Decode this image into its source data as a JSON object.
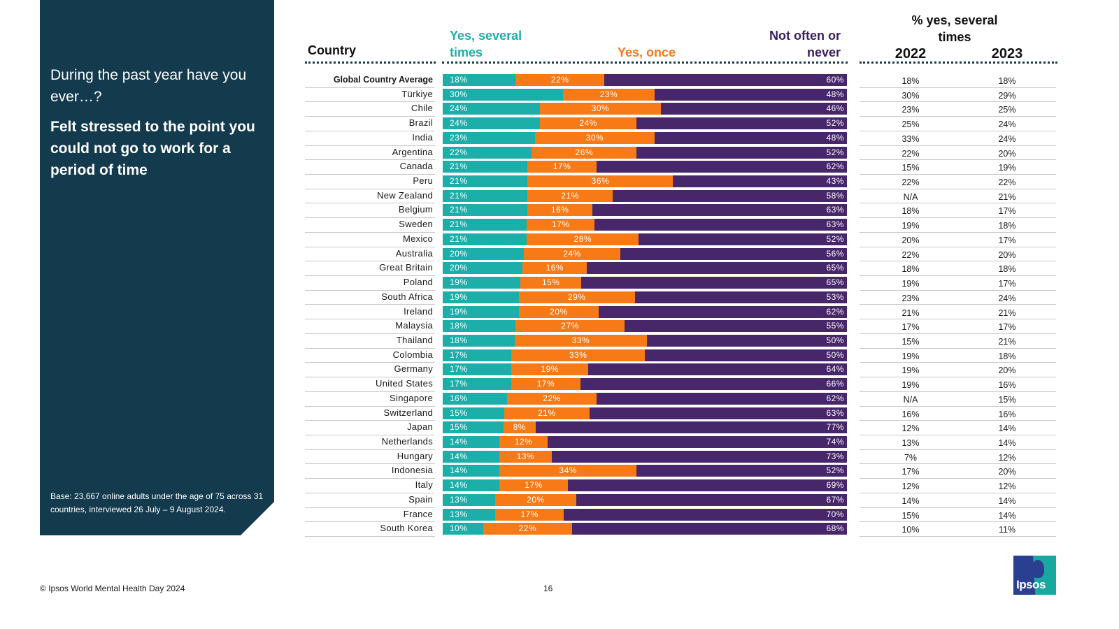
{
  "side_panel": {
    "question": "During the past year have you ever…?",
    "statement": "Felt stressed to the point you could not go to work for a period of time",
    "base_note": "Base: 23,667 online adults under the age of 75 across 31 countries, interviewed 26 July – 9 August 2024."
  },
  "headers": {
    "country": "Country",
    "yes_several": "Yes, several times",
    "yes_once": "Yes, once",
    "not_often": "Not often or never",
    "pct_yes_several": "% yes, several times",
    "year_2022": "2022",
    "year_2023": "2023"
  },
  "colors": {
    "yes_several": "#1cafa9",
    "yes_once": "#f77a17",
    "not_often": "#47266a",
    "panel": "#133a4d"
  },
  "footer": {
    "copyright": "© Ipsos World Mental Health Day 2024",
    "page_number": "16"
  },
  "logo": {
    "text": "Ipsos"
  },
  "chart_data": {
    "type": "bar",
    "orientation": "horizontal-stacked",
    "title": "Felt stressed to the point you could not go to work for a period of time",
    "xlabel": "",
    "ylabel": "Country",
    "xlim": [
      0,
      100
    ],
    "legend": [
      "Yes, several times",
      "Yes, once",
      "Not often or never"
    ],
    "categories": [
      "Global Country Average",
      "Türkiye",
      "Chile",
      "Brazil",
      "India",
      "Argentina",
      "Canada",
      "Peru",
      "New Zealand",
      "Belgium",
      "Sweden",
      "Mexico",
      "Australia",
      "Great Britain",
      "Poland",
      "South Africa",
      "Ireland",
      "Malaysia",
      "Thailand",
      "Colombia",
      "Germany",
      "United States",
      "Singapore",
      "Switzerland",
      "Japan",
      "Netherlands",
      "Hungary",
      "Indonesia",
      "Italy",
      "Spain",
      "France",
      "South Korea"
    ],
    "series": [
      {
        "name": "Yes, several times",
        "values": [
          18,
          30,
          24,
          24,
          23,
          22,
          21,
          21,
          21,
          21,
          21,
          21,
          20,
          20,
          19,
          19,
          19,
          18,
          18,
          17,
          17,
          17,
          16,
          15,
          15,
          14,
          14,
          14,
          14,
          13,
          13,
          10
        ]
      },
      {
        "name": "Yes, once",
        "values": [
          22,
          23,
          30,
          24,
          30,
          26,
          17,
          36,
          21,
          16,
          17,
          28,
          24,
          16,
          15,
          29,
          20,
          27,
          33,
          33,
          19,
          17,
          22,
          21,
          8,
          12,
          13,
          34,
          17,
          20,
          17,
          22
        ]
      },
      {
        "name": "Not often or never",
        "values": [
          60,
          48,
          46,
          52,
          48,
          52,
          62,
          43,
          58,
          63,
          63,
          52,
          56,
          65,
          65,
          53,
          62,
          55,
          50,
          50,
          64,
          66,
          62,
          63,
          77,
          74,
          73,
          52,
          69,
          67,
          70,
          68
        ]
      }
    ],
    "table": {
      "title": "% yes, several times",
      "columns": [
        "2022",
        "2023"
      ],
      "values_2022": [
        "18%",
        "30%",
        "23%",
        "25%",
        "33%",
        "22%",
        "15%",
        "22%",
        "N/A",
        "18%",
        "19%",
        "20%",
        "22%",
        "18%",
        "19%",
        "23%",
        "21%",
        "17%",
        "15%",
        "19%",
        "19%",
        "19%",
        "N/A",
        "16%",
        "12%",
        "13%",
        "7%",
        "17%",
        "12%",
        "14%",
        "15%",
        "10%"
      ],
      "values_2023": [
        "18%",
        "29%",
        "25%",
        "24%",
        "24%",
        "20%",
        "19%",
        "22%",
        "21%",
        "17%",
        "18%",
        "17%",
        "20%",
        "18%",
        "17%",
        "24%",
        "21%",
        "17%",
        "21%",
        "18%",
        "20%",
        "16%",
        "15%",
        "16%",
        "14%",
        "14%",
        "12%",
        "20%",
        "12%",
        "14%",
        "14%",
        "11%"
      ]
    }
  }
}
